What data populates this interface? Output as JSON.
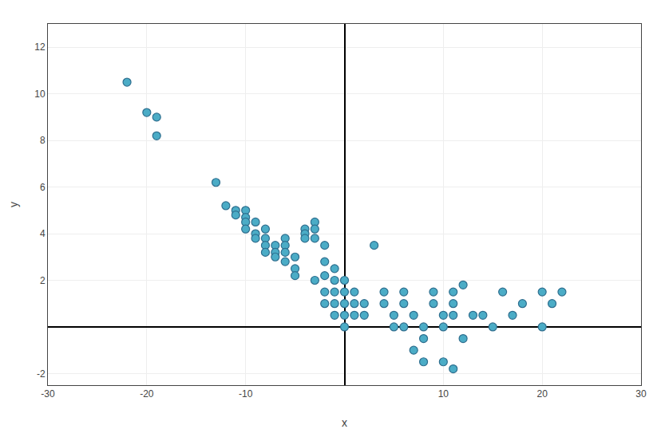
{
  "chart_data": {
    "type": "scatter",
    "xlabel": "x",
    "ylabel": "y",
    "x": [
      -22,
      -20,
      -19,
      -19,
      -13,
      -12,
      -11,
      -11,
      -10,
      -10,
      -10,
      -10,
      -9,
      -9,
      -9,
      -8,
      -8,
      -8,
      -8,
      -7,
      -7,
      -7,
      -6,
      -6,
      -6,
      -6,
      -5,
      -5,
      -5,
      -4,
      -4,
      -4,
      -3,
      -3,
      -3,
      -3,
      -2,
      -2,
      -2,
      -2,
      -2,
      -1,
      -1,
      -1,
      -1,
      -1,
      0,
      0,
      0,
      0,
      0,
      1,
      1,
      1,
      2,
      2,
      3,
      4,
      4,
      5,
      5,
      6,
      6,
      7,
      8,
      8,
      9,
      9,
      10,
      10,
      11,
      11,
      11,
      12,
      13,
      14,
      15,
      16,
      17,
      18,
      20,
      20,
      21,
      22,
      6,
      7,
      8,
      10,
      11,
      12
    ],
    "values": [
      10.5,
      9.2,
      9.0,
      8.2,
      6.2,
      5.2,
      5.0,
      4.8,
      5.0,
      4.7,
      4.5,
      4.2,
      4.5,
      4.0,
      3.8,
      4.2,
      3.8,
      3.5,
      3.2,
      3.5,
      3.2,
      3.0,
      3.8,
      3.5,
      3.2,
      2.8,
      3.0,
      2.5,
      2.2,
      4.2,
      4.0,
      3.8,
      4.5,
      4.2,
      3.8,
      2.0,
      3.5,
      2.8,
      2.2,
      1.5,
      1.0,
      2.5,
      2.0,
      1.5,
      1.0,
      0.5,
      2.0,
      1.5,
      1.0,
      0.5,
      0.0,
      1.5,
      1.0,
      0.5,
      1.0,
      0.5,
      3.5,
      1.5,
      1.0,
      0.5,
      0.0,
      1.5,
      1.0,
      0.5,
      0.0,
      -0.5,
      1.5,
      1.0,
      0.5,
      0.0,
      1.5,
      1.0,
      0.5,
      1.8,
      0.5,
      0.5,
      0.0,
      1.5,
      0.5,
      1.0,
      1.5,
      0.0,
      1.0,
      1.5,
      0.0,
      -1.0,
      -1.5,
      -1.5,
      -1.8,
      -0.5
    ],
    "color": "#4BACC6",
    "xlim": [
      -30,
      30
    ],
    "xticks": [
      -30,
      -20,
      -10,
      10,
      20,
      30
    ],
    "ylim": [
      -2.5,
      13
    ],
    "yticks": [
      -2,
      2,
      4,
      6,
      8,
      10,
      12
    ],
    "grid": true
  }
}
